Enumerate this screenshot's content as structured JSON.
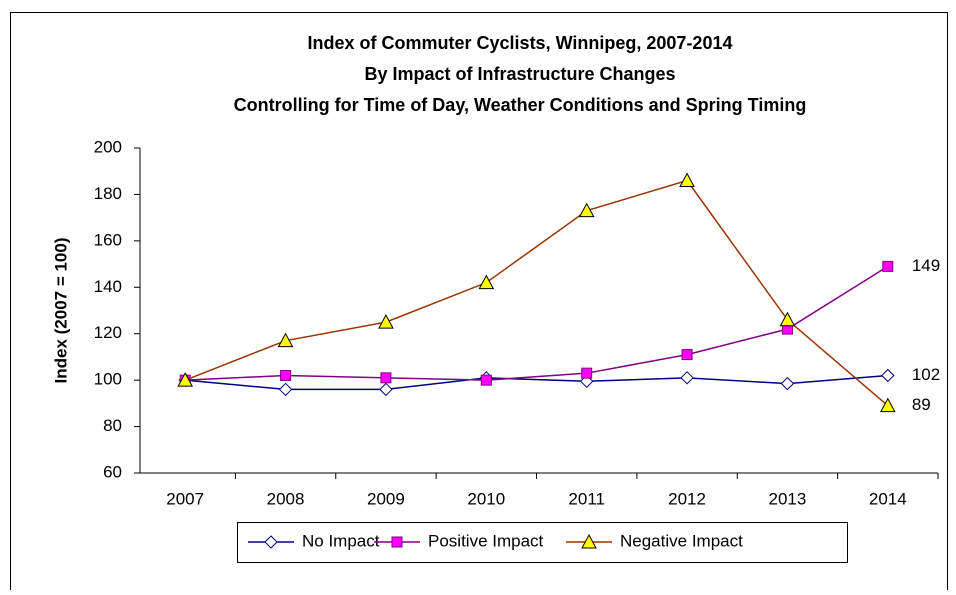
{
  "chart_data": {
    "type": "line",
    "title": [
      "Index of Commuter Cyclists, Winnipeg, 2007-2014",
      "By Impact of Infrastructure Changes",
      "Controlling for Time of Day, Weather Conditions and Spring Timing"
    ],
    "y_label": "Index (2007 = 100)",
    "categories": [
      "2007",
      "2008",
      "2009",
      "2010",
      "2011",
      "2012",
      "2013",
      "2014"
    ],
    "series": [
      {
        "name": "No Impact",
        "color": "#000080",
        "marker": "diamond",
        "marker_fill": "#ffffff",
        "values": [
          100,
          96,
          96,
          101,
          99.5,
          101,
          98.5,
          102
        ],
        "end_label": true
      },
      {
        "name": "Positive Impact",
        "color": "#800080",
        "marker": "square",
        "marker_fill": "#ff00ff",
        "values": [
          100,
          102,
          101,
          100,
          103,
          111,
          122,
          149
        ],
        "end_label": true
      },
      {
        "name": "Negative Impact",
        "color": "#993300",
        "marker": "triangle",
        "marker_fill": "#ffff00",
        "values": [
          100,
          117,
          125,
          142,
          173,
          186,
          126,
          89
        ],
        "end_label": true
      }
    ],
    "ylim": [
      60,
      200
    ],
    "yticks": [
      60,
      80,
      100,
      120,
      140,
      160,
      180,
      200
    ],
    "grid": false,
    "legend": "bottom"
  }
}
